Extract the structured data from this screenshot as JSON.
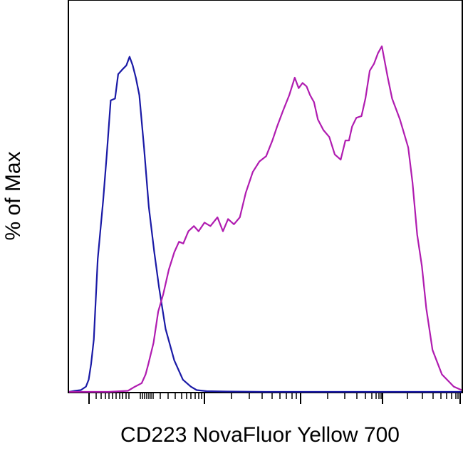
{
  "chart_data": {
    "type": "line",
    "title": "",
    "xlabel": "CD223 NovaFluor Yellow 700",
    "ylabel": "% of Max",
    "xscale": "log",
    "xtick_labels": [],
    "ytick_labels": [],
    "xlim": [
      0,
      100
    ],
    "ylim": [
      0,
      100
    ],
    "grid": false,
    "legend": "none",
    "series": [
      {
        "color": "#1a1aa6",
        "x": [
          0.0,
          1.5,
          3.0,
          4.3,
          5.0,
          5.6,
          6.3,
          7.3,
          8.7,
          9.6,
          10.6,
          11.7,
          12.5,
          13.7,
          14.6,
          15.4,
          16.2,
          17.0,
          17.9,
          19.1,
          20.3,
          21.7,
          22.9,
          24.6,
          26.8,
          29.0,
          31.0,
          32.5,
          35.0,
          40.0,
          50.0,
          60.0,
          80.0,
          100.0
        ],
        "y": [
          0,
          0.3,
          0.5,
          1.5,
          3.5,
          8.0,
          15.0,
          38.0,
          55.0,
          68.0,
          83.5,
          84.0,
          91.0,
          92.5,
          93.5,
          96.0,
          93.5,
          90.0,
          85.0,
          70.0,
          53.0,
          40.0,
          30.0,
          18.0,
          9.0,
          3.5,
          1.5,
          0.5,
          0.2,
          0.1,
          0,
          0,
          0,
          0
        ]
      },
      {
        "color": "#b01cb0",
        "x": [
          0.0,
          10.0,
          15.0,
          16.8,
          18.5,
          19.5,
          20.2,
          21.5,
          22.7,
          24.0,
          25.4,
          26.8,
          28.0,
          29.1,
          30.4,
          31.8,
          33.0,
          34.5,
          36.0,
          37.8,
          39.2,
          40.5,
          42.0,
          43.5,
          45.0,
          46.8,
          48.5,
          50.2,
          51.8,
          53.0,
          54.5,
          56.1,
          57.5,
          58.5,
          59.5,
          60.5,
          61.4,
          62.4,
          63.4,
          64.8,
          66.3,
          67.7,
          69.2,
          70.4,
          71.3,
          72.1,
          73.2,
          74.5,
          75.5,
          76.6,
          77.7,
          78.7,
          79.7,
          81.2,
          82.3,
          84.3,
          86.4,
          87.5,
          88.7,
          89.9,
          91.0,
          92.6,
          95.0,
          98.0,
          100.0
        ],
        "y": [
          0,
          0,
          0.3,
          1.5,
          2.5,
          5.0,
          8.0,
          14.0,
          23.0,
          28.0,
          35.0,
          40.0,
          43.0,
          42.5,
          46.0,
          47.5,
          46.0,
          48.5,
          47.5,
          50.0,
          46.0,
          49.5,
          48.0,
          50.0,
          57.0,
          63.0,
          66.0,
          67.5,
          72.0,
          76.0,
          80.5,
          85.0,
          90.0,
          87.0,
          88.5,
          87.5,
          85.0,
          83.0,
          78.0,
          75.0,
          73.0,
          68.0,
          66.5,
          72.0,
          72.0,
          76.0,
          78.5,
          79.0,
          84.0,
          92.0,
          94.0,
          97.0,
          99.0,
          90.0,
          84.0,
          78.0,
          70.0,
          60.0,
          45.0,
          36.0,
          24.0,
          12.0,
          5.0,
          1.5,
          0.5
        ]
      }
    ]
  }
}
